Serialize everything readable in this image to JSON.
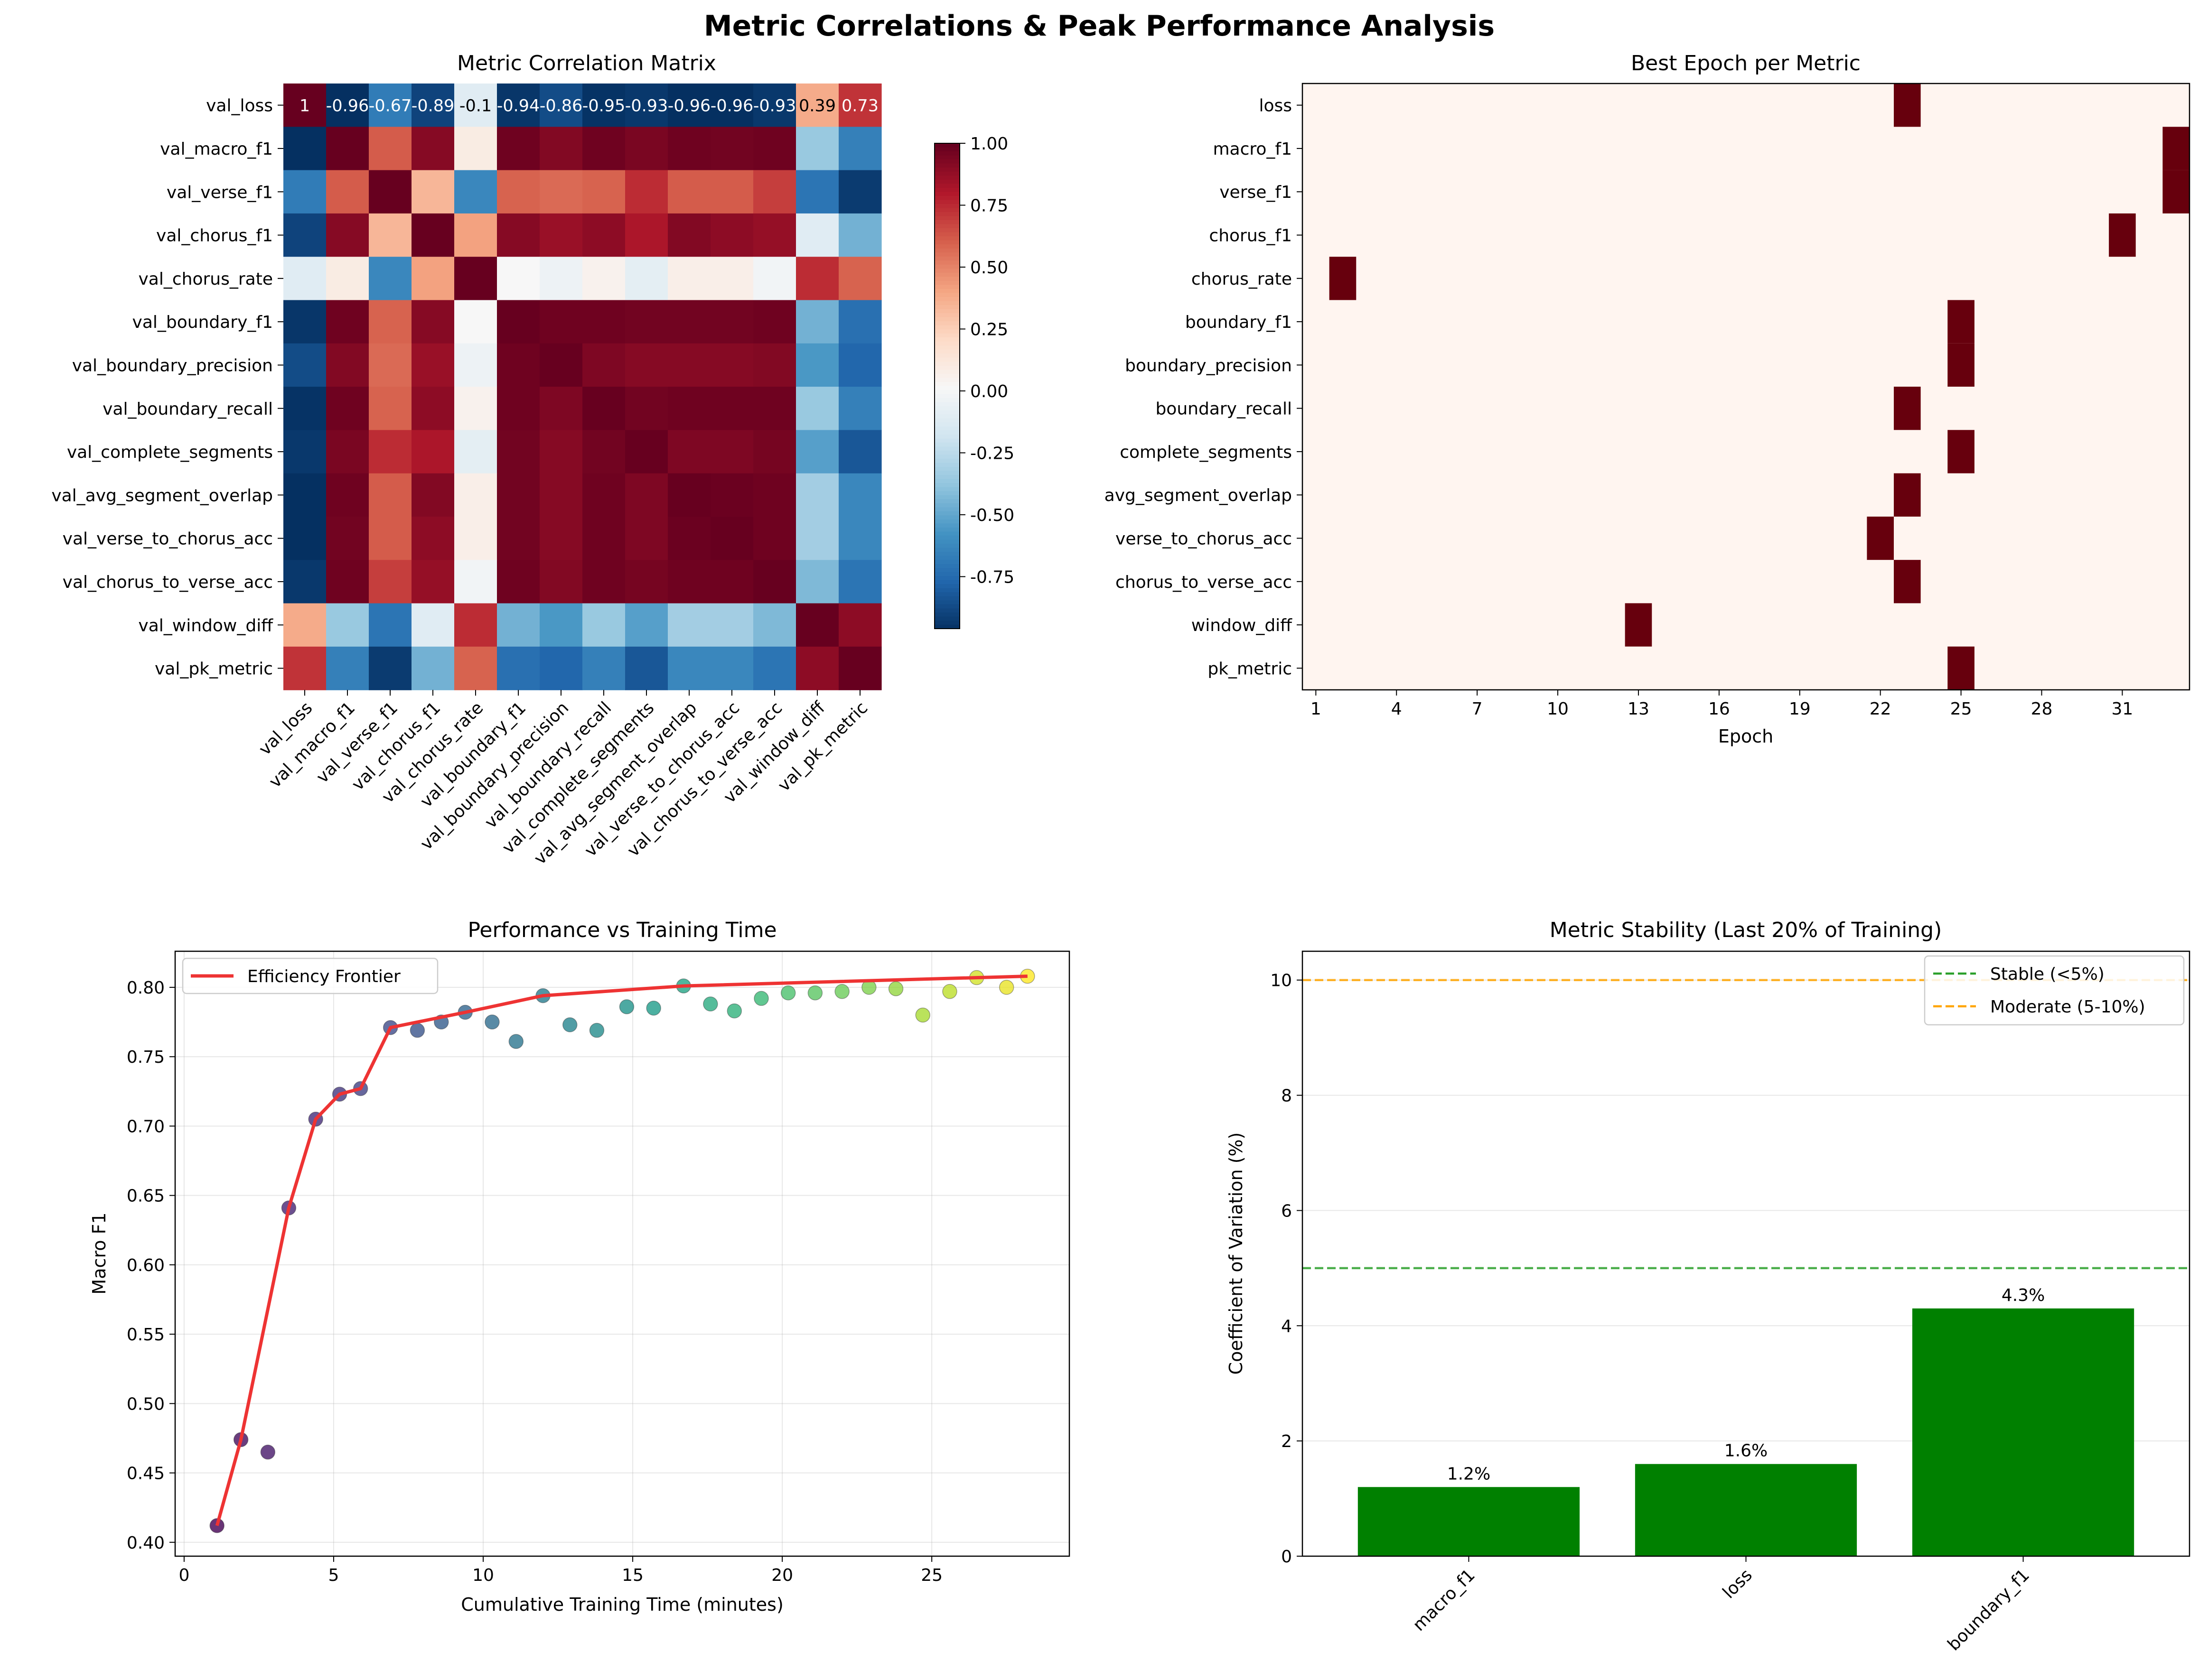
{
  "figure": {
    "suptitle": "Metric Correlations & Peak Performance Analysis"
  },
  "chart_data": [
    {
      "type": "heatmap",
      "title": "Metric Correlation Matrix",
      "labels": [
        "val_loss",
        "val_macro_f1",
        "val_verse_f1",
        "val_chorus_f1",
        "val_chorus_rate",
        "val_boundary_f1",
        "val_boundary_precision",
        "val_boundary_recall",
        "val_complete_segments",
        "val_avg_segment_overlap",
        "val_verse_to_chorus_acc",
        "val_chorus_to_verse_acc",
        "val_window_diff",
        "val_pk_metric"
      ],
      "row0_annotations": [
        "1",
        "-0.96",
        "-0.67",
        "-0.89",
        "-0.1",
        "-0.94",
        "-0.86",
        "-0.95",
        "-0.93",
        "-0.96",
        "-0.96",
        "-0.93",
        "0.39",
        "0.73"
      ],
      "colorbar": {
        "cmap": "RdBu_r",
        "vmin": -0.96,
        "vmax": 1.0,
        "ticks": [
          "1.00",
          "0.75",
          "0.50",
          "0.25",
          "0.00",
          "-0.25",
          "-0.50",
          "-0.75"
        ],
        "tick_values": [
          1.0,
          0.75,
          0.5,
          0.25,
          0.0,
          -0.25,
          -0.5,
          -0.75
        ]
      },
      "matrix": [
        [
          1.0,
          -0.96,
          -0.67,
          -0.89,
          -0.1,
          -0.94,
          -0.86,
          -0.95,
          -0.93,
          -0.96,
          -0.96,
          -0.93,
          0.39,
          0.73
        ],
        [
          -0.96,
          1.0,
          0.62,
          0.92,
          0.1,
          0.98,
          0.93,
          0.98,
          0.95,
          0.98,
          0.97,
          0.98,
          -0.35,
          -0.65
        ],
        [
          -0.67,
          0.62,
          1.0,
          0.35,
          -0.62,
          0.6,
          0.58,
          0.6,
          0.75,
          0.62,
          0.62,
          0.7,
          -0.7,
          -0.92
        ],
        [
          -0.89,
          0.92,
          0.35,
          1.0,
          0.42,
          0.92,
          0.87,
          0.9,
          0.82,
          0.93,
          0.9,
          0.88,
          -0.1,
          -0.45
        ],
        [
          -0.1,
          0.1,
          -0.62,
          0.42,
          1.0,
          0.02,
          -0.03,
          0.06,
          -0.08,
          0.08,
          0.08,
          -0.01,
          0.75,
          0.6
        ],
        [
          -0.94,
          0.98,
          0.6,
          0.92,
          0.02,
          1.0,
          0.98,
          0.98,
          0.97,
          0.97,
          0.97,
          0.98,
          -0.45,
          -0.72
        ],
        [
          -0.86,
          0.93,
          0.58,
          0.87,
          -0.03,
          0.98,
          1.0,
          0.94,
          0.92,
          0.92,
          0.92,
          0.93,
          -0.55,
          -0.76
        ],
        [
          -0.95,
          0.98,
          0.6,
          0.9,
          0.06,
          0.98,
          0.94,
          1.0,
          0.97,
          0.98,
          0.98,
          0.98,
          -0.35,
          -0.65
        ],
        [
          -0.93,
          0.95,
          0.75,
          0.82,
          -0.08,
          0.97,
          0.92,
          0.97,
          1.0,
          0.94,
          0.94,
          0.96,
          -0.52,
          -0.82
        ],
        [
          -0.96,
          0.98,
          0.62,
          0.93,
          0.08,
          0.97,
          0.92,
          0.98,
          0.94,
          1.0,
          0.99,
          0.98,
          -0.32,
          -0.62
        ],
        [
          -0.96,
          0.97,
          0.62,
          0.9,
          0.08,
          0.97,
          0.92,
          0.98,
          0.94,
          0.99,
          1.0,
          0.98,
          -0.32,
          -0.62
        ],
        [
          -0.93,
          0.98,
          0.7,
          0.88,
          -0.01,
          0.98,
          0.93,
          0.98,
          0.96,
          0.98,
          0.98,
          1.0,
          -0.42,
          -0.7
        ],
        [
          0.39,
          -0.35,
          -0.7,
          -0.1,
          0.75,
          -0.45,
          -0.55,
          -0.35,
          -0.52,
          -0.32,
          -0.32,
          -0.42,
          1.0,
          0.9
        ],
        [
          0.73,
          -0.65,
          -0.92,
          -0.45,
          0.6,
          -0.72,
          -0.76,
          -0.65,
          -0.82,
          -0.62,
          -0.62,
          -0.7,
          0.9,
          1.0
        ]
      ]
    },
    {
      "type": "heatmap",
      "title": "Best Epoch per Metric",
      "xlabel": "Epoch",
      "rows": [
        "loss",
        "macro_f1",
        "verse_f1",
        "chorus_f1",
        "chorus_rate",
        "boundary_f1",
        "boundary_precision",
        "boundary_recall",
        "complete_segments",
        "avg_segment_overlap",
        "verse_to_chorus_acc",
        "chorus_to_verse_acc",
        "window_diff",
        "pk_metric"
      ],
      "epochs": 33,
      "xticks": [
        "1",
        "4",
        "7",
        "10",
        "13",
        "16",
        "19",
        "22",
        "25",
        "28",
        "31"
      ],
      "best_epoch": [
        23,
        33,
        33,
        31,
        2,
        25,
        25,
        23,
        25,
        23,
        22,
        23,
        13,
        25
      ],
      "colors": {
        "background": "#fff5f0",
        "marked": "#67000d"
      }
    },
    {
      "type": "scatter",
      "title": "Performance vs Training Time",
      "xlabel": "Cumulative Training Time (minutes)",
      "ylabel": "Macro F1",
      "xlim": [
        -0.3,
        29.6
      ],
      "ylim": [
        0.39,
        0.826
      ],
      "xticks": [
        "0",
        "5",
        "10",
        "15",
        "20",
        "25"
      ],
      "yticks": [
        "0.40",
        "0.45",
        "0.50",
        "0.55",
        "0.60",
        "0.65",
        "0.70",
        "0.75",
        "0.80"
      ],
      "legend": "Efficiency Frontier",
      "frontier_color": "#ee3333",
      "points": [
        {
          "x": 1.1,
          "y": 0.412
        },
        {
          "x": 1.9,
          "y": 0.474
        },
        {
          "x": 2.8,
          "y": 0.465
        },
        {
          "x": 3.5,
          "y": 0.641
        },
        {
          "x": 4.4,
          "y": 0.705
        },
        {
          "x": 5.2,
          "y": 0.723
        },
        {
          "x": 5.9,
          "y": 0.727
        },
        {
          "x": 6.9,
          "y": 0.771
        },
        {
          "x": 7.8,
          "y": 0.769
        },
        {
          "x": 8.6,
          "y": 0.775
        },
        {
          "x": 9.4,
          "y": 0.782
        },
        {
          "x": 10.3,
          "y": 0.775
        },
        {
          "x": 11.1,
          "y": 0.761
        },
        {
          "x": 12.0,
          "y": 0.794
        },
        {
          "x": 12.9,
          "y": 0.773
        },
        {
          "x": 13.8,
          "y": 0.769
        },
        {
          "x": 14.8,
          "y": 0.786
        },
        {
          "x": 15.7,
          "y": 0.785
        },
        {
          "x": 16.7,
          "y": 0.801
        },
        {
          "x": 17.6,
          "y": 0.788
        },
        {
          "x": 18.4,
          "y": 0.783
        },
        {
          "x": 19.3,
          "y": 0.792
        },
        {
          "x": 20.2,
          "y": 0.796
        },
        {
          "x": 21.1,
          "y": 0.796
        },
        {
          "x": 22.0,
          "y": 0.797
        },
        {
          "x": 22.9,
          "y": 0.8
        },
        {
          "x": 23.8,
          "y": 0.799
        },
        {
          "x": 24.7,
          "y": 0.78
        },
        {
          "x": 25.6,
          "y": 0.797
        },
        {
          "x": 26.5,
          "y": 0.807
        },
        {
          "x": 27.5,
          "y": 0.8
        },
        {
          "x": 28.2,
          "y": 0.808
        }
      ],
      "frontier": [
        {
          "x": 1.1,
          "y": 0.412
        },
        {
          "x": 1.9,
          "y": 0.474
        },
        {
          "x": 3.5,
          "y": 0.641
        },
        {
          "x": 4.4,
          "y": 0.705
        },
        {
          "x": 5.2,
          "y": 0.723
        },
        {
          "x": 5.9,
          "y": 0.727
        },
        {
          "x": 6.9,
          "y": 0.771
        },
        {
          "x": 9.4,
          "y": 0.782
        },
        {
          "x": 12.0,
          "y": 0.794
        },
        {
          "x": 16.7,
          "y": 0.801
        },
        {
          "x": 26.5,
          "y": 0.807
        },
        {
          "x": 28.2,
          "y": 0.808
        }
      ]
    },
    {
      "type": "bar",
      "title": "Metric Stability (Last 20% of Training)",
      "ylabel": "Coefficient of Variation (%)",
      "categories": [
        "macro_f1",
        "loss",
        "boundary_f1"
      ],
      "values": [
        1.2,
        1.6,
        4.3
      ],
      "labels": [
        "1.2%",
        "1.6%",
        "4.3%"
      ],
      "ylim": [
        0,
        10.5
      ],
      "yticks": [
        "0",
        "2",
        "4",
        "6",
        "8",
        "10"
      ],
      "bar_color": "#008000",
      "reference_lines": [
        {
          "name": "Stable (<5%)",
          "value": 5,
          "color": "#2ca02c"
        },
        {
          "name": "Moderate (5-10%)",
          "value": 10,
          "color": "#ffa500"
        }
      ]
    }
  ]
}
